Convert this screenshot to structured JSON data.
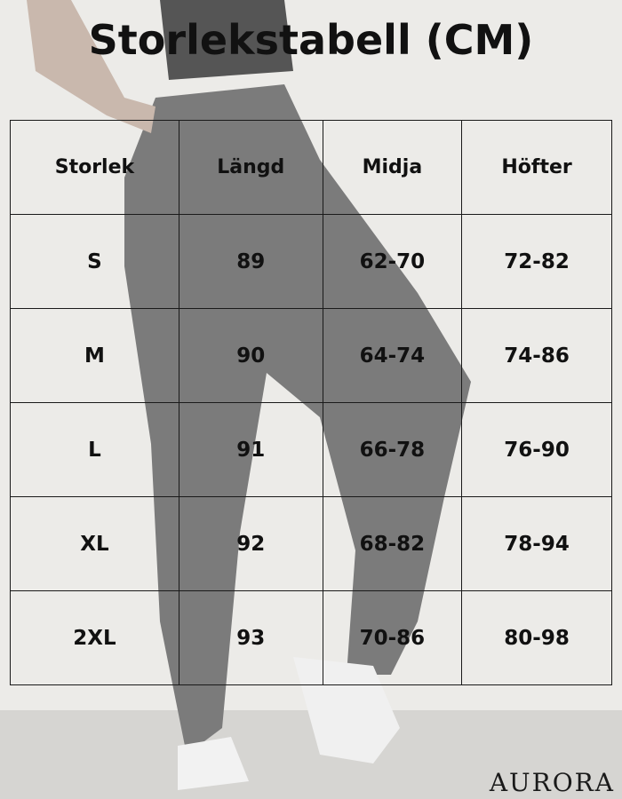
{
  "title": "Storlekstabell (CM)",
  "table": {
    "headers": [
      "Storlek",
      "Längd",
      "Midja",
      "Höfter"
    ],
    "rows": [
      [
        "S",
        "89",
        "62-70",
        "72-82"
      ],
      [
        "M",
        "90",
        "64-74",
        "74-86"
      ],
      [
        "L",
        "91",
        "66-78",
        "76-90"
      ],
      [
        "XL",
        "92",
        "68-82",
        "78-94"
      ],
      [
        "2XL",
        "93",
        "70-86",
        "80-98"
      ]
    ]
  },
  "brand": "AURORA"
}
